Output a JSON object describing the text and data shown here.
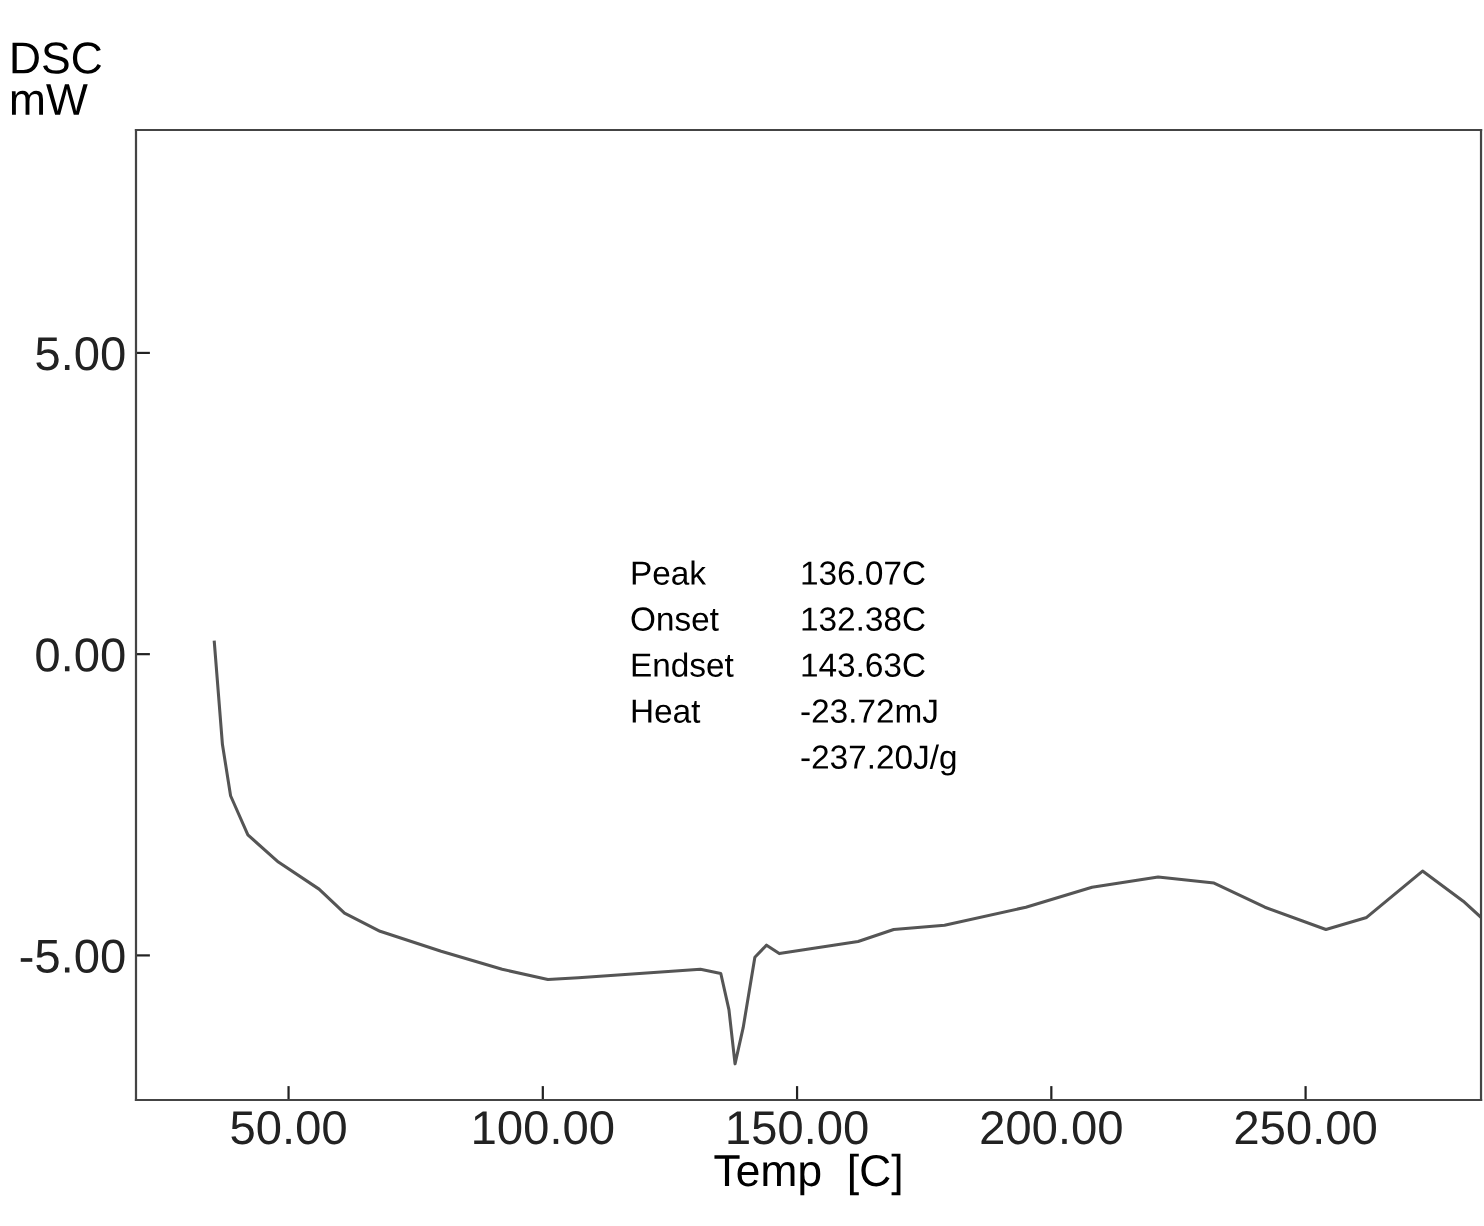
{
  "chart_data": {
    "type": "line",
    "xlabel": "Temp  [C]",
    "ylabel": "DSC\nmW",
    "xlim": [
      20,
      284.5
    ],
    "ylim": [
      -7.4,
      8.7
    ],
    "xticks": [
      {
        "value": 50,
        "label": "50.00"
      },
      {
        "value": 100,
        "label": "100.00"
      },
      {
        "value": 150,
        "label": "150.00"
      },
      {
        "value": 200,
        "label": "200.00"
      },
      {
        "value": 250,
        "label": "250.00"
      }
    ],
    "yticks": [
      {
        "value": -5,
        "label": "-5.00"
      },
      {
        "value": 0,
        "label": "0.00"
      },
      {
        "value": 5,
        "label": "5.00"
      }
    ],
    "grid": false,
    "legend": false,
    "marker": "none",
    "line_style": "solid",
    "annotations": [
      "Peak",
      "136.07C",
      "Onset",
      "132.38C",
      "Endset",
      "143.63C",
      "Heat",
      "-23.72mJ",
      "-237.20J/g"
    ],
    "series": [
      {
        "color": "#555555",
        "x": [
          35.4,
          37,
          38.6,
          42,
          48,
          56,
          61,
          68,
          80,
          92,
          101,
          107,
          119,
          131,
          135,
          136.6,
          137.8,
          139.4,
          141.7,
          144,
          146.5,
          162,
          169,
          179,
          195,
          208,
          221,
          232,
          242,
          254,
          262,
          273,
          281,
          284.5
        ],
        "values": [
          0.2,
          -1.5,
          -2.35,
          -3.0,
          -3.45,
          -3.9,
          -4.3,
          -4.6,
          -4.93,
          -5.23,
          -5.4,
          -5.37,
          -5.3,
          -5.23,
          -5.3,
          -5.9,
          -6.8,
          -6.2,
          -5.03,
          -4.83,
          -4.97,
          -4.77,
          -4.57,
          -4.5,
          -4.2,
          -3.87,
          -3.7,
          -3.8,
          -4.2,
          -4.57,
          -4.37,
          -3.6,
          -4.1,
          -4.37
        ]
      }
    ]
  }
}
